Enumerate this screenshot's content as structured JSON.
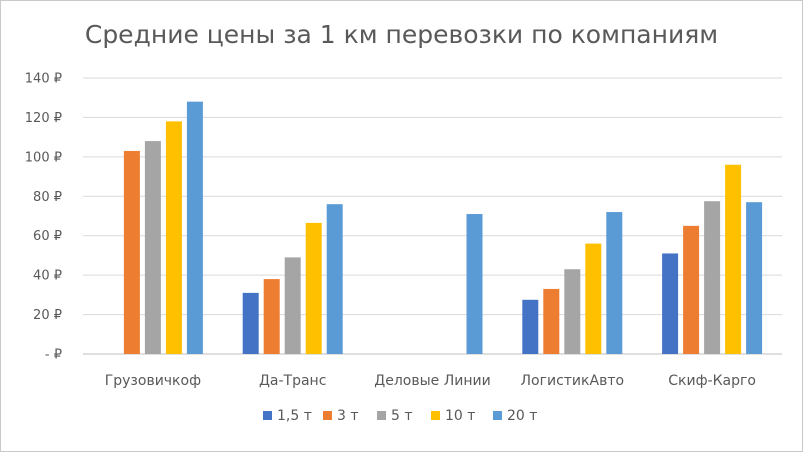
{
  "chart_data": {
    "type": "bar",
    "title": "Средние цены за 1 км перевозки по компаниям",
    "categories": [
      "Грузовичкоф",
      "Да-Транс",
      "Деловые Линии",
      "ЛогистикАвто",
      "Скиф-Карго"
    ],
    "series": [
      {
        "name": "1,5 т",
        "color": "#4472C4",
        "values": [
          null,
          31,
          null,
          27.5,
          51
        ]
      },
      {
        "name": "3 т",
        "color": "#ED7D31",
        "values": [
          103,
          38,
          null,
          33,
          65
        ]
      },
      {
        "name": "5 т",
        "color": "#A5A5A5",
        "values": [
          108,
          49,
          null,
          43,
          77.5
        ]
      },
      {
        "name": "10 т",
        "color": "#FFC000",
        "values": [
          118,
          66.5,
          null,
          56,
          96
        ]
      },
      {
        "name": "20 т",
        "color": "#5B9BD5",
        "values": [
          128,
          76,
          71,
          72,
          77
        ]
      }
    ],
    "ylim": [
      0,
      140
    ],
    "yticks": [
      0,
      20,
      40,
      60,
      80,
      100,
      120,
      140
    ],
    "ytick_labels": [
      "-  ₽",
      "20 ₽",
      "40 ₽",
      "60 ₽",
      "80 ₽",
      "100 ₽",
      "120 ₽",
      "140 ₽"
    ],
    "grid": true,
    "legend": "bottom"
  }
}
